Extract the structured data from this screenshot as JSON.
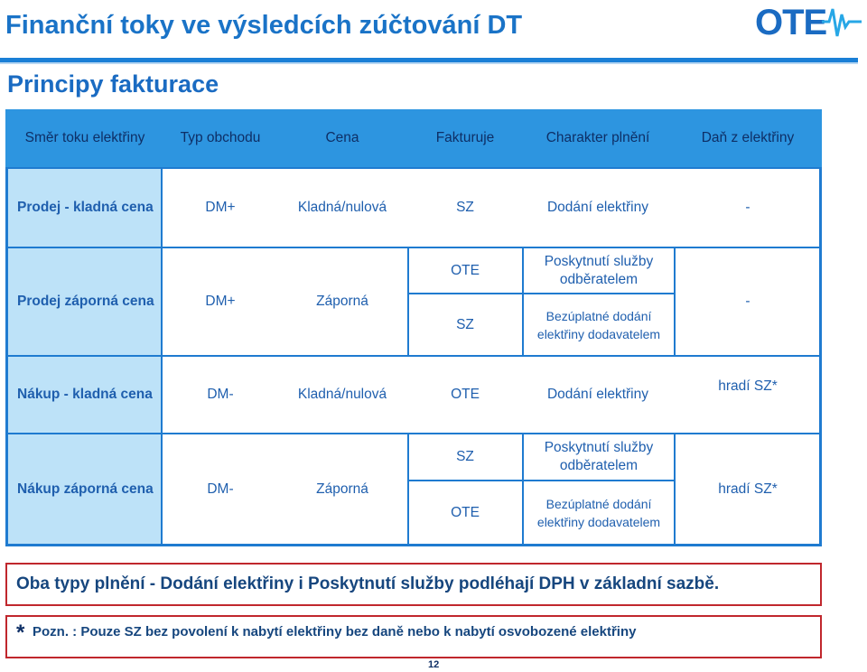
{
  "header": {
    "title": "Finanční toky ve výsledcích zúčtování DT",
    "logo_text": "OTE",
    "subtitle": "Principy fakturace"
  },
  "table": {
    "columns": [
      "Směr toku elektřiny",
      "Typ obchodu",
      "Cena",
      "Fakturuje",
      "Charakter plnění",
      "Daň z elektřiny"
    ],
    "rows": [
      {
        "direction": "Prodej - kladná cena",
        "type": "DM+",
        "price": "Kladná/nulová",
        "invoices": [
          "SZ"
        ],
        "character": [
          "Dodání elektřiny"
        ],
        "tax": "-"
      },
      {
        "direction": "Prodej záporná cena",
        "type": "DM+",
        "price": "Záporná",
        "invoices": [
          "OTE",
          "SZ"
        ],
        "character": [
          "Poskytnutí služby odběratelem",
          "Bezúplatné dodání elektřiny dodavatelem"
        ],
        "tax": "-"
      },
      {
        "direction": "Nákup - kladná cena",
        "type": "DM-",
        "price": "Kladná/nulová",
        "invoices": [
          "OTE"
        ],
        "character": [
          "Dodání elektřiny"
        ],
        "tax": "hradí SZ*"
      },
      {
        "direction": "Nákup záporná cena",
        "type": "DM-",
        "price": "Záporná",
        "invoices": [
          "SZ",
          "OTE"
        ],
        "character": [
          "Poskytnutí služby odběratelem",
          "Bezúplatné dodání elektřiny dodavatelem"
        ],
        "tax": "hradí SZ*"
      }
    ]
  },
  "notes": {
    "vat": "Oba typy plnění - Dodání elektřiny i Poskytnutí služby podléhají DPH v základní sazbě.",
    "star": "*",
    "footnote": "Pozn. : Pouze SZ bez povolení k nabytí elektřiny bez daně nebo k nabytí osvobozené elektřiny"
  },
  "page_number": "12",
  "colors": {
    "title": "#1a73c7",
    "header_fill": "#2d95e0",
    "first_column_fill": "#bde2f8",
    "note_border": "#c0272d"
  }
}
